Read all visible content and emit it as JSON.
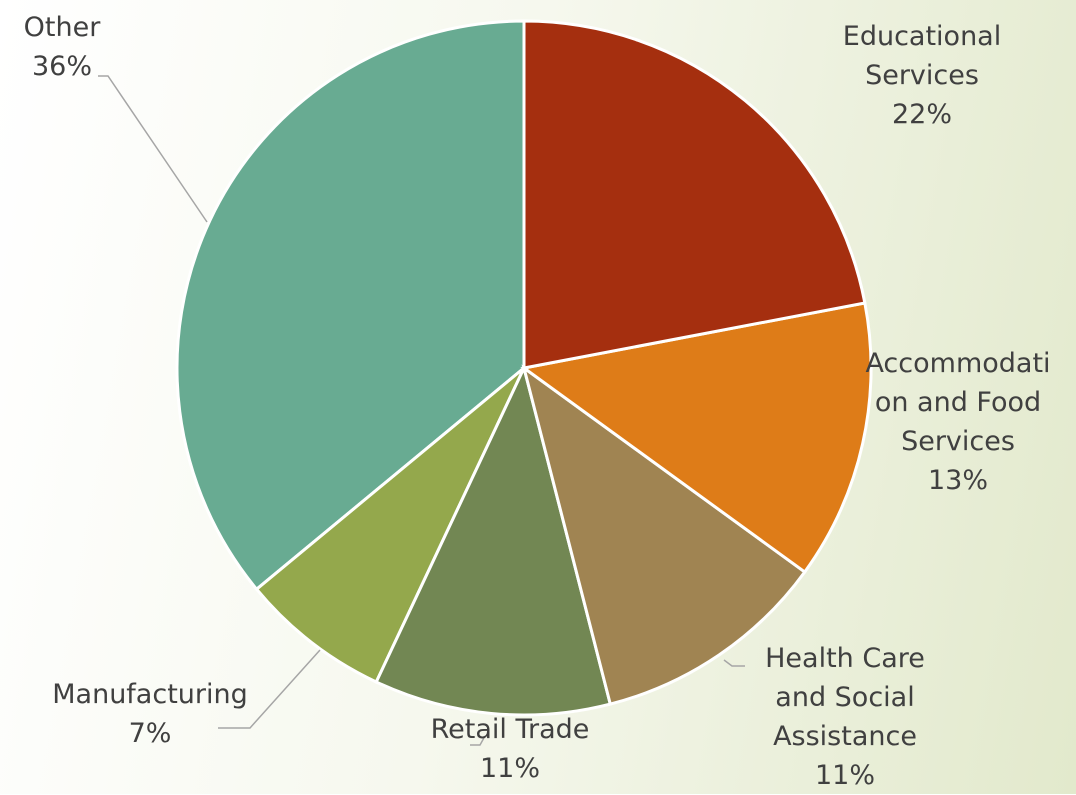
{
  "chart_data": {
    "type": "pie",
    "categories": [
      "Educational Services",
      "Accommodation and Food Services",
      "Health Care and Social Assistance",
      "Retail Trade",
      "Manufacturing",
      "Other"
    ],
    "values": [
      22,
      13,
      11,
      11,
      7,
      36
    ],
    "value_labels": [
      "22%",
      "13%",
      "11%",
      "11%",
      "7%",
      "36%"
    ],
    "colors": [
      "#a52f0f",
      "#de7c18",
      "#a08452",
      "#728753",
      "#94a84c",
      "#68ab92"
    ]
  }
}
